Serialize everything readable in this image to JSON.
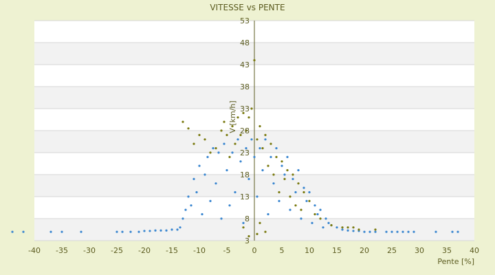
{
  "chart_data": {
    "type": "scatter",
    "title": "VITESSE vs PENTE",
    "xlabel": "Pente [%]",
    "ylabel": "V [km/h]",
    "xlim": [
      -40,
      40
    ],
    "ylim": [
      3,
      53
    ],
    "x_ticks": [
      -40,
      -35,
      -30,
      -25,
      -20,
      -15,
      -10,
      -5,
      0,
      5,
      10,
      15,
      20,
      25,
      30,
      35,
      40
    ],
    "y_ticks": [
      3,
      8,
      13,
      18,
      23,
      28,
      33,
      38,
      43,
      48,
      53
    ],
    "grid": true,
    "series": [
      {
        "color": "#3a86d0",
        "points": [
          [
            -44,
            5
          ],
          [
            -42,
            5
          ],
          [
            -37,
            5
          ],
          [
            -35,
            5
          ],
          [
            -31.5,
            5
          ],
          [
            -25,
            5
          ],
          [
            -24,
            5
          ],
          [
            -22.5,
            5
          ],
          [
            -21,
            5
          ],
          [
            -20,
            5.2
          ],
          [
            -19,
            5.2
          ],
          [
            -18,
            5.3
          ],
          [
            -17,
            5.3
          ],
          [
            -16,
            5.3
          ],
          [
            -15,
            5.5
          ],
          [
            -14,
            5.5
          ],
          [
            -13.5,
            6
          ],
          [
            -13,
            8
          ],
          [
            -12.5,
            10
          ],
          [
            -12,
            13
          ],
          [
            -11.5,
            11
          ],
          [
            -11,
            17
          ],
          [
            -10.5,
            14
          ],
          [
            -10,
            20
          ],
          [
            -9.5,
            9
          ],
          [
            -9,
            18
          ],
          [
            -8.5,
            22
          ],
          [
            -8,
            12
          ],
          [
            -7.5,
            24
          ],
          [
            -7,
            16
          ],
          [
            -6.5,
            23
          ],
          [
            -6,
            8
          ],
          [
            -5.5,
            25
          ],
          [
            -5,
            19
          ],
          [
            -4.5,
            11
          ],
          [
            -4,
            23
          ],
          [
            -3.5,
            14
          ],
          [
            -3,
            26
          ],
          [
            -2.5,
            21
          ],
          [
            -2,
            7
          ],
          [
            -1.5,
            24
          ],
          [
            -1,
            17
          ],
          [
            -0.5,
            26
          ],
          [
            0,
            22
          ],
          [
            0.5,
            13
          ],
          [
            1,
            24
          ],
          [
            1.5,
            19
          ],
          [
            2,
            26
          ],
          [
            2.5,
            9
          ],
          [
            3,
            22
          ],
          [
            3.5,
            16
          ],
          [
            4,
            24
          ],
          [
            4.5,
            12
          ],
          [
            5,
            20
          ],
          [
            5.5,
            18
          ],
          [
            6,
            22
          ],
          [
            6.5,
            10
          ],
          [
            7,
            17
          ],
          [
            7.5,
            14
          ],
          [
            8,
            19
          ],
          [
            8.5,
            8
          ],
          [
            9,
            15
          ],
          [
            9.5,
            12
          ],
          [
            10,
            14
          ],
          [
            10.5,
            7
          ],
          [
            11,
            11
          ],
          [
            11.5,
            9
          ],
          [
            12,
            10
          ],
          [
            12.5,
            6
          ],
          [
            13,
            8
          ],
          [
            13.5,
            7
          ],
          [
            14,
            6.5
          ],
          [
            15,
            6
          ],
          [
            16,
            5.5
          ],
          [
            17,
            5.3
          ],
          [
            18,
            5.2
          ],
          [
            19,
            5.2
          ],
          [
            20,
            5
          ],
          [
            21,
            5
          ],
          [
            22,
            5
          ],
          [
            24,
            5
          ],
          [
            25,
            5
          ],
          [
            26,
            5
          ],
          [
            27,
            5
          ],
          [
            28,
            5
          ],
          [
            29,
            5
          ],
          [
            33,
            5
          ],
          [
            36,
            5
          ],
          [
            37,
            5
          ]
        ]
      },
      {
        "color": "#7a7a10",
        "points": [
          [
            -13,
            30
          ],
          [
            -12,
            28.5
          ],
          [
            -11,
            25
          ],
          [
            -10,
            27
          ],
          [
            -9,
            26
          ],
          [
            -8,
            23
          ],
          [
            -7,
            24
          ],
          [
            -6,
            28
          ],
          [
            -5.5,
            30
          ],
          [
            -5,
            27
          ],
          [
            -4.5,
            22
          ],
          [
            -4,
            29
          ],
          [
            -3.5,
            25
          ],
          [
            -3,
            31
          ],
          [
            -2.5,
            27
          ],
          [
            -2,
            32
          ],
          [
            -1.5,
            28
          ],
          [
            -1,
            31
          ],
          [
            -0.5,
            33
          ],
          [
            0,
            44
          ],
          [
            0.5,
            26
          ],
          [
            1,
            29
          ],
          [
            1.5,
            24
          ],
          [
            2,
            27
          ],
          [
            2.5,
            20
          ],
          [
            3,
            25
          ],
          [
            3.5,
            18
          ],
          [
            4,
            22
          ],
          [
            4.5,
            14
          ],
          [
            5,
            21
          ],
          [
            5.5,
            17
          ],
          [
            6,
            19
          ],
          [
            6.5,
            13
          ],
          [
            7,
            18
          ],
          [
            7.5,
            11
          ],
          [
            8,
            16
          ],
          [
            8.5,
            10
          ],
          [
            9,
            14
          ],
          [
            10,
            12
          ],
          [
            11,
            9
          ],
          [
            12,
            8
          ],
          [
            14,
            6.5
          ],
          [
            16,
            6
          ],
          [
            17,
            6
          ],
          [
            18,
            6
          ],
          [
            19,
            5.5
          ],
          [
            22,
            5.5
          ],
          [
            -1,
            4
          ],
          [
            0.5,
            4.5
          ],
          [
            2,
            5
          ],
          [
            -2,
            6
          ],
          [
            1,
            7
          ]
        ]
      }
    ]
  }
}
